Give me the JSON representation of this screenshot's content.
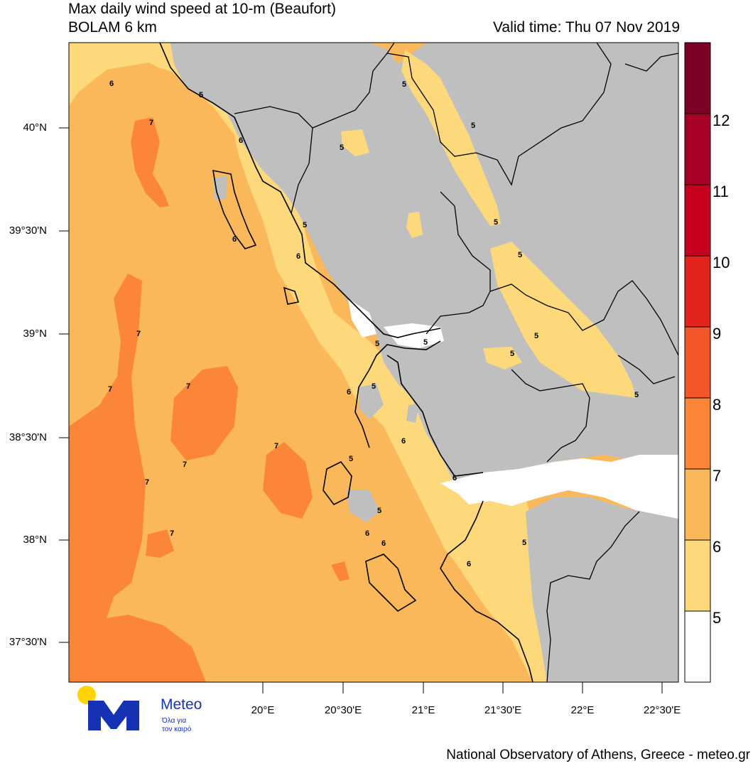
{
  "header": {
    "title_line1": "Max daily wind speed at 10-m (Beaufort)",
    "title_line2": "BOLAM 6 km",
    "valid_time": "Valid time: Thu 07 Nov 2019"
  },
  "colors": {
    "land": "#bfbfbf",
    "sea_white": "#ffffff",
    "bf5": "#ffffff",
    "bf6": "#fdd97c",
    "bf7": "#fbb85a",
    "bf8": "#fb8638",
    "bf9": "#f45629",
    "bf10": "#e3231e",
    "bf11": "#c8001f",
    "bf12": "#a70026",
    "bf13": "#7d0027"
  },
  "axes": {
    "latitudes": [
      "40°N",
      "39°30'N",
      "39°N",
      "38°30'N",
      "38°N",
      "37°30'N"
    ],
    "longitudes": [
      "20°E",
      "20°30'E",
      "21°E",
      "21°30'E",
      "22°E",
      "22°30'E"
    ]
  },
  "colorbar": {
    "labels": [
      "12",
      "11",
      "10",
      "9",
      "8",
      "7",
      "6",
      "5"
    ]
  },
  "contour_labels": {
    "c1": "6",
    "c2": "5",
    "c3": "7",
    "c4": "6",
    "c5": "5",
    "c6": "5",
    "c7": "5",
    "c8": "5",
    "c9": "6",
    "c10": "6",
    "c11": "5",
    "c12": "5",
    "c13": "5",
    "c14": "7",
    "c15": "5",
    "c16": "5",
    "c17": "5",
    "c18": "7",
    "c19": "6",
    "c20": "5",
    "c21": "7",
    "c22": "6",
    "c23": "7",
    "c24": "5",
    "c25": "7",
    "c26": "5",
    "c27": "7",
    "c28": "6",
    "c29": "6",
    "c30": "6",
    "c31": "5",
    "c32": "6",
    "c33": "7",
    "c34": "5"
  },
  "logo": {
    "word": "Meteo",
    "tagline1": "Όλα για",
    "tagline2": "τον καιρό"
  },
  "footer": "National Observatory of Athens, Greece - meteo.gr"
}
